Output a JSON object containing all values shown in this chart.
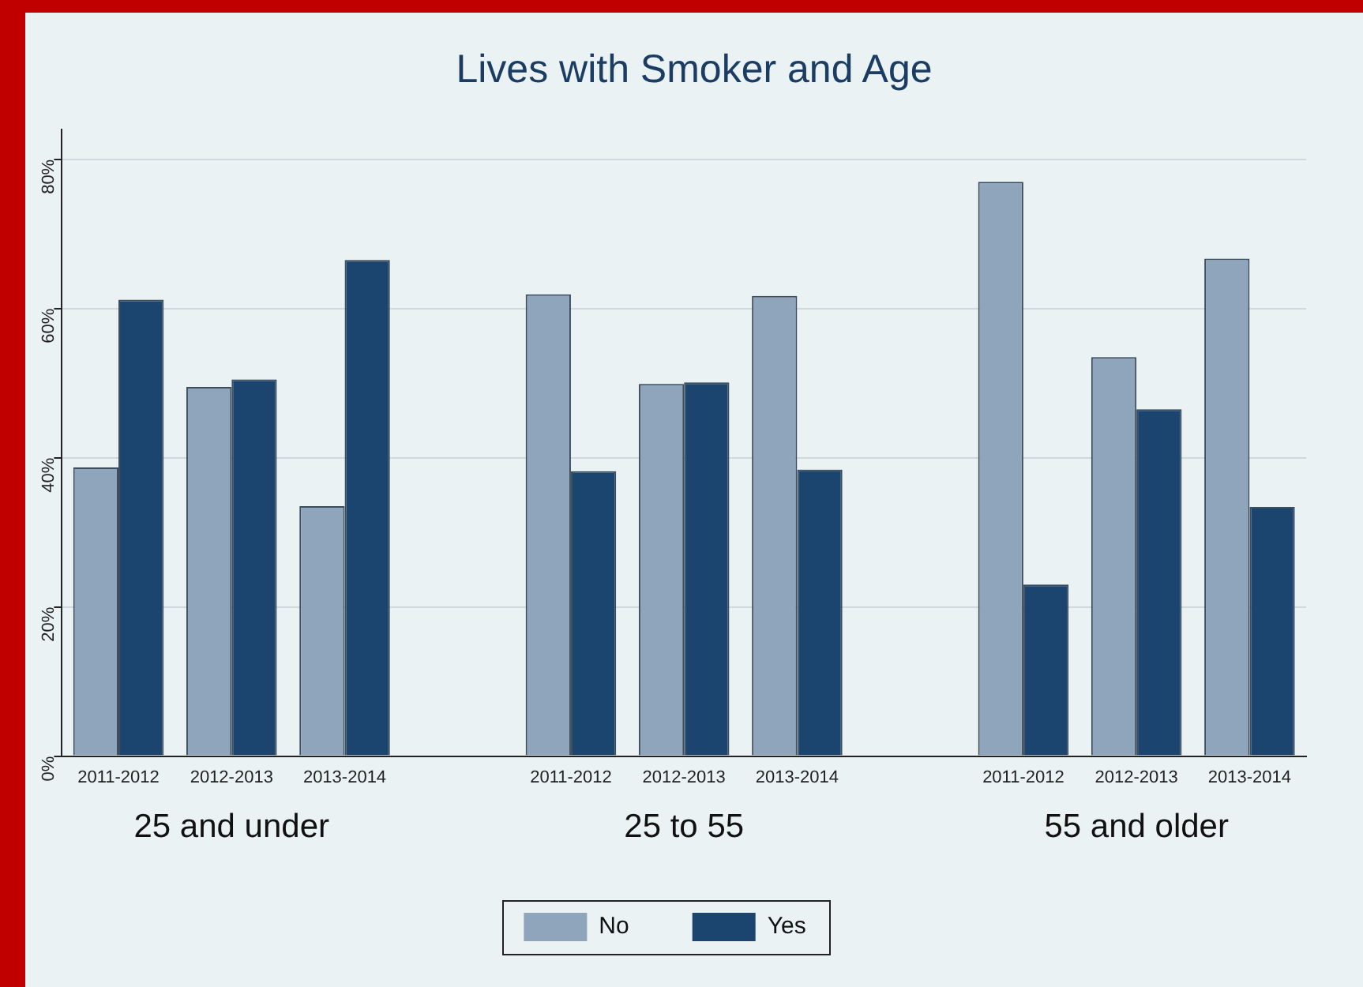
{
  "chart_data": {
    "type": "bar",
    "title": "Lives with Smoker and Age",
    "categories": [
      "2011-2012",
      "2012-2013",
      "2013-2014",
      null,
      "2011-2012",
      "2012-2013",
      "2013-2014",
      null,
      "2011-2012",
      "2012-2013",
      "2013-2014"
    ],
    "series": [
      {
        "name": "No",
        "color": "#8fa5bc",
        "values": [
          38.7,
          49.5,
          33.5,
          null,
          61.9,
          49.9,
          61.7,
          null,
          77,
          53.5,
          66.7
        ]
      },
      {
        "name": "Yes",
        "color": "#1b456e",
        "values": [
          61.2,
          50.5,
          66.5,
          null,
          38.2,
          50.1,
          38.4,
          null,
          23,
          46.5,
          33.4
        ]
      }
    ],
    "annotations": [
      "25 and under",
      "25 to 55",
      "55 and older"
    ],
    "ylim": [
      0,
      84
    ],
    "yticks": [
      {
        "value": 0,
        "label": "0%"
      },
      {
        "value": 20,
        "label": "20%"
      },
      {
        "value": 40,
        "label": "40%"
      },
      {
        "value": 60,
        "label": "60%"
      },
      {
        "value": 80,
        "label": "80%"
      }
    ],
    "grid": "y",
    "legend": "bottom"
  }
}
